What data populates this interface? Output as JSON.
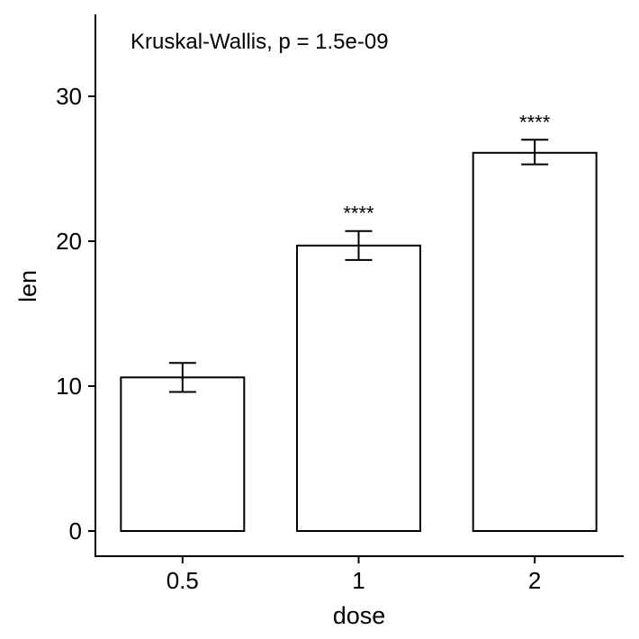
{
  "chart_data": {
    "type": "bar",
    "xlabel": "dose",
    "ylabel": "len",
    "categories": [
      "0.5",
      "1",
      "2"
    ],
    "values": [
      10.6,
      19.7,
      26.1
    ],
    "error_low": [
      9.6,
      18.7,
      25.3
    ],
    "error_high": [
      11.6,
      20.7,
      27.0
    ],
    "significance": [
      "",
      "****",
      "****"
    ],
    "annotation": "Kruskal-Wallis, p = 1.5e-09",
    "yticks": [
      0,
      10,
      20,
      30
    ],
    "ylim": [
      -1.5,
      35.5
    ],
    "grid": false,
    "bar_fill": "#ffffff",
    "bar_stroke": "#000000"
  }
}
